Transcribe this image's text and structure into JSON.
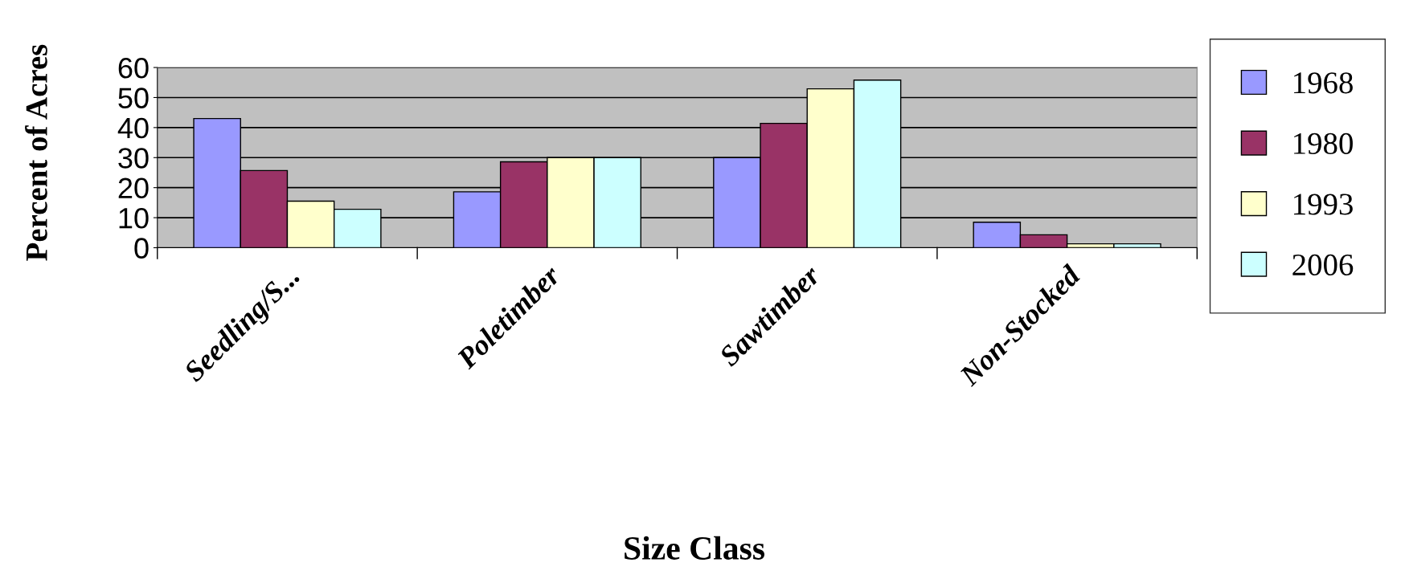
{
  "chart_data": {
    "type": "bar",
    "xlabel": "Size Class",
    "ylabel": "Percent of Acres",
    "categories": [
      "Seedling/S...",
      "Poletimber",
      "Sawtimber",
      "Non-Stocked"
    ],
    "series": [
      {
        "name": "1968",
        "color": "#9999ff",
        "values": [
          43,
          18.6,
          30,
          8.5
        ]
      },
      {
        "name": "1980",
        "color": "#993366",
        "values": [
          25.7,
          28.6,
          41.4,
          4.3
        ]
      },
      {
        "name": "1993",
        "color": "#ffffcc",
        "values": [
          15.5,
          30,
          52.9,
          1.3
        ]
      },
      {
        "name": "2006",
        "color": "#ccffff",
        "values": [
          12.8,
          30,
          55.8,
          1.3
        ]
      }
    ],
    "ylim": [
      0,
      60
    ],
    "yticks": [
      0,
      10,
      20,
      30,
      40,
      50,
      60
    ],
    "grid": "y",
    "legend": "right"
  }
}
